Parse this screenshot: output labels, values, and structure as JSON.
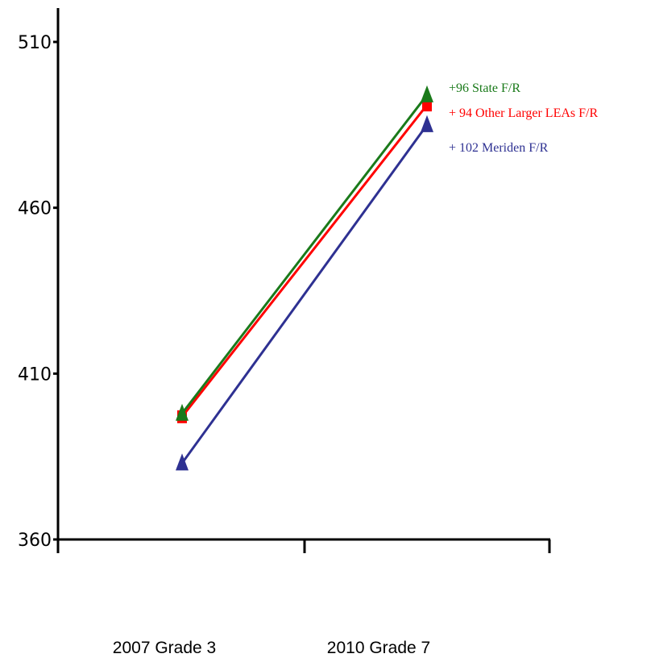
{
  "chart_data": {
    "type": "line",
    "title": "",
    "xlabel": "",
    "ylabel": "",
    "categories": [
      "2007 Grade 3",
      "2010 Grade 7"
    ],
    "ylim": [
      360,
      515
    ],
    "yticks": [
      360,
      410,
      460,
      510
    ],
    "grid": false,
    "legend": "none",
    "series": [
      {
        "label": "+96 State F/R",
        "color": "#1a7a1a",
        "marker": "triangle",
        "values": [
          398,
          494
        ]
      },
      {
        "label": "+ 94 Other Larger LEAs F/R",
        "color": "#ff0000",
        "marker": "square",
        "values": [
          397,
          491
        ]
      },
      {
        "label": "+ 102 Meriden F/R",
        "color": "#2e3192",
        "marker": "triangle",
        "values": [
          383,
          485
        ]
      }
    ]
  }
}
